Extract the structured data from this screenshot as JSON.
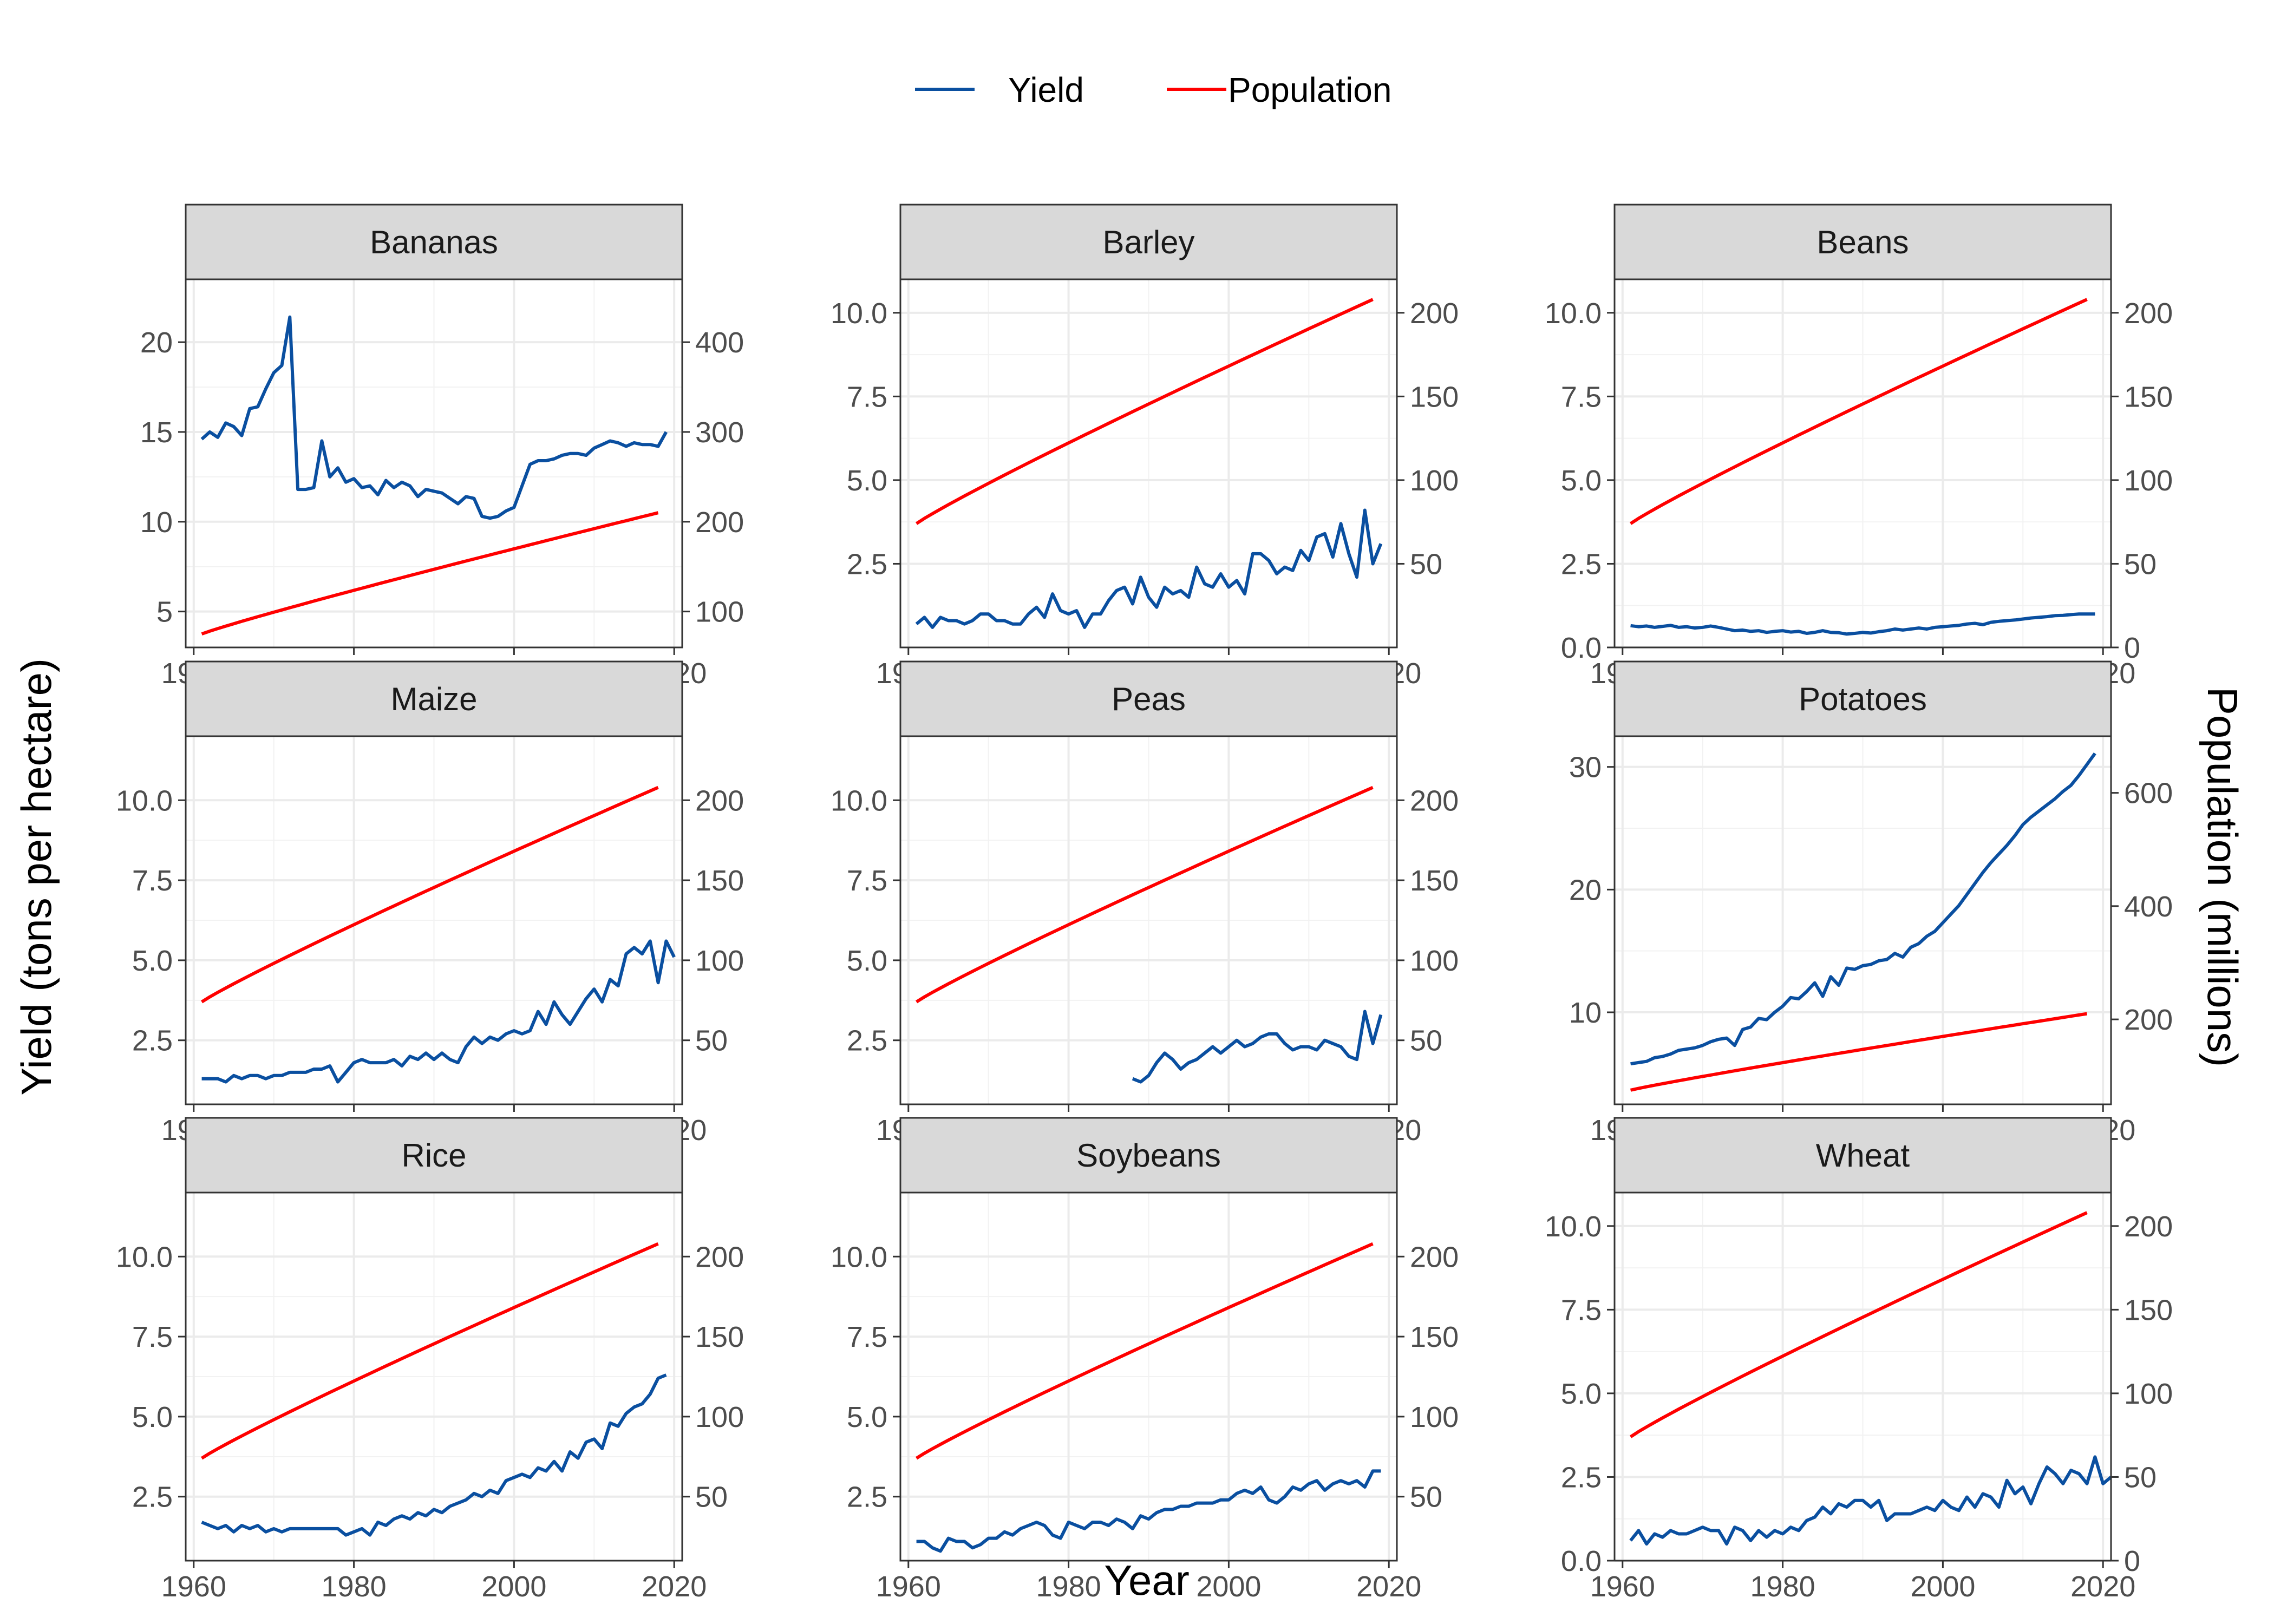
{
  "chart_data": {
    "type": "line",
    "legend": {
      "position": "top",
      "entries": [
        {
          "name": "Yield",
          "color": "#0a4fa0"
        },
        {
          "name": "Population",
          "color": "#ff0000"
        }
      ]
    },
    "xlabel": "Year",
    "ylabel": "Yield (tons per hectare)",
    "ylabel_right": "Population (millions)",
    "x_ticks": [
      1960,
      1980,
      2000,
      2020
    ],
    "xlim": [
      1959,
      2021
    ],
    "grid": true,
    "panels": [
      {
        "title": "Bananas",
        "ylim": [
          3,
          23.5
        ],
        "y_ticks": [
          5,
          10,
          15,
          20
        ],
        "y2lim": [
          60,
          470
        ],
        "y2_ticks": [
          100,
          200,
          300,
          400
        ],
        "yield": {
          "start_year": 1961,
          "values": [
            14.6,
            15.0,
            14.7,
            15.5,
            15.3,
            14.8,
            16.3,
            16.4,
            17.4,
            18.3,
            18.7,
            21.4,
            11.8,
            11.8,
            11.9,
            14.5,
            12.5,
            13.0,
            12.2,
            12.4,
            11.9,
            12.0,
            11.5,
            12.3,
            11.9,
            12.2,
            12.0,
            11.4,
            11.8,
            11.7,
            11.6,
            11.3,
            11.0,
            11.4,
            11.3,
            10.3,
            10.2,
            10.3,
            10.6,
            10.8,
            12.0,
            13.2,
            13.4,
            13.4,
            13.5,
            13.7,
            13.8,
            13.8,
            13.7,
            14.1,
            14.3,
            14.5,
            14.4,
            14.2,
            14.4,
            14.3,
            14.3,
            14.2,
            15.0
          ]
        },
        "population": {
          "start_year": 1961,
          "start_value": 75,
          "end_value": 210
        }
      },
      {
        "title": "Barley",
        "ylim": [
          0,
          11
        ],
        "y_ticks": [
          2.5,
          5.0,
          7.5,
          10.0
        ],
        "y_tick_labels": [
          "2.5",
          "5.0",
          "7.5",
          "10.0"
        ],
        "y2lim": [
          0,
          220
        ],
        "y2_ticks": [
          50,
          100,
          150,
          200
        ],
        "yield": {
          "start_year": 1961,
          "values": [
            0.7,
            0.9,
            0.6,
            0.9,
            0.8,
            0.8,
            0.7,
            0.8,
            1.0,
            1.0,
            0.8,
            0.8,
            0.7,
            0.7,
            1.0,
            1.2,
            0.9,
            1.6,
            1.1,
            1.0,
            1.1,
            0.6,
            1.0,
            1.0,
            1.4,
            1.7,
            1.8,
            1.3,
            2.1,
            1.5,
            1.2,
            1.8,
            1.6,
            1.7,
            1.5,
            2.4,
            1.9,
            1.8,
            2.2,
            1.8,
            2.0,
            1.6,
            2.8,
            2.8,
            2.6,
            2.2,
            2.4,
            2.3,
            2.9,
            2.6,
            3.3,
            3.4,
            2.7,
            3.7,
            2.8,
            2.1,
            4.1,
            2.5,
            3.1
          ]
        },
        "population": {
          "start_year": 1961,
          "start_value": 74,
          "end_value": 208
        }
      },
      {
        "title": "Beans",
        "ylim": [
          0,
          11
        ],
        "y_ticks": [
          0.0,
          2.5,
          5.0,
          7.5,
          10.0
        ],
        "y_tick_labels": [
          "0.0",
          "2.5",
          "5.0",
          "7.5",
          "10.0"
        ],
        "y2lim": [
          0,
          220
        ],
        "y2_ticks": [
          0,
          50,
          100,
          150,
          200
        ],
        "yield": {
          "start_year": 1961,
          "values": [
            0.65,
            0.62,
            0.64,
            0.6,
            0.63,
            0.66,
            0.6,
            0.62,
            0.58,
            0.6,
            0.64,
            0.6,
            0.55,
            0.5,
            0.52,
            0.48,
            0.5,
            0.45,
            0.48,
            0.5,
            0.46,
            0.48,
            0.42,
            0.45,
            0.5,
            0.45,
            0.44,
            0.4,
            0.42,
            0.45,
            0.43,
            0.47,
            0.5,
            0.55,
            0.52,
            0.55,
            0.58,
            0.55,
            0.6,
            0.62,
            0.64,
            0.66,
            0.7,
            0.72,
            0.68,
            0.75,
            0.78,
            0.8,
            0.82,
            0.85,
            0.88,
            0.9,
            0.92,
            0.95,
            0.96,
            0.98,
            1.0,
            1.0,
            1.0
          ]
        },
        "population": {
          "start_year": 1961,
          "start_value": 74,
          "end_value": 208
        }
      },
      {
        "title": "Maize",
        "ylim": [
          0.5,
          12
        ],
        "y_ticks": [
          2.5,
          5.0,
          7.5,
          10.0
        ],
        "y_tick_labels": [
          "2.5",
          "5.0",
          "7.5",
          "10.0"
        ],
        "y2lim": [
          10,
          240
        ],
        "y2_ticks": [
          50,
          100,
          150,
          200
        ],
        "yield": {
          "start_year": 1961,
          "values": [
            1.3,
            1.3,
            1.3,
            1.2,
            1.4,
            1.3,
            1.4,
            1.4,
            1.3,
            1.4,
            1.4,
            1.5,
            1.5,
            1.5,
            1.6,
            1.6,
            1.7,
            1.2,
            1.5,
            1.8,
            1.9,
            1.8,
            1.8,
            1.8,
            1.9,
            1.7,
            2.0,
            1.9,
            2.1,
            1.9,
            2.1,
            1.9,
            1.8,
            2.3,
            2.6,
            2.4,
            2.6,
            2.5,
            2.7,
            2.8,
            2.7,
            2.8,
            3.4,
            3.0,
            3.7,
            3.3,
            3.0,
            3.4,
            3.8,
            4.1,
            3.7,
            4.4,
            4.2,
            5.2,
            5.4,
            5.2,
            5.6,
            4.3,
            5.6,
            5.1
          ]
        },
        "population": {
          "start_year": 1961,
          "start_value": 74,
          "end_value": 208
        }
      },
      {
        "title": "Peas",
        "ylim": [
          0.5,
          12
        ],
        "y_ticks": [
          2.5,
          5.0,
          7.5,
          10.0
        ],
        "y_tick_labels": [
          "2.5",
          "5.0",
          "7.5",
          "10.0"
        ],
        "y2lim": [
          10,
          240
        ],
        "y2_ticks": [
          50,
          100,
          150,
          200
        ],
        "yield": {
          "start_year": 1988,
          "values": [
            1.3,
            1.2,
            1.4,
            1.8,
            2.1,
            1.9,
            1.6,
            1.8,
            1.9,
            2.1,
            2.3,
            2.1,
            2.3,
            2.5,
            2.3,
            2.4,
            2.6,
            2.7,
            2.7,
            2.4,
            2.2,
            2.3,
            2.3,
            2.2,
            2.5,
            2.4,
            2.3,
            2.0,
            1.9,
            3.4,
            2.4,
            3.3
          ]
        },
        "population": {
          "start_year": 1961,
          "start_value": 74,
          "end_value": 208
        }
      },
      {
        "title": "Potatoes",
        "ylim": [
          2.5,
          32.5
        ],
        "y_ticks": [
          10,
          20,
          30
        ],
        "y2lim": [
          50,
          700
        ],
        "y2_ticks": [
          200,
          400,
          600
        ],
        "yield": {
          "start_year": 1961,
          "values": [
            5.8,
            5.9,
            6.0,
            6.3,
            6.4,
            6.6,
            6.9,
            7.0,
            7.1,
            7.3,
            7.6,
            7.8,
            7.9,
            7.3,
            8.6,
            8.8,
            9.5,
            9.4,
            10.0,
            10.5,
            11.2,
            11.1,
            11.7,
            12.4,
            11.3,
            12.9,
            12.2,
            13.6,
            13.5,
            13.8,
            13.9,
            14.2,
            14.3,
            14.8,
            14.5,
            15.3,
            15.6,
            16.2,
            16.6,
            17.3,
            18.0,
            18.7,
            19.6,
            20.5,
            21.4,
            22.2,
            22.9,
            23.6,
            24.4,
            25.3,
            25.9,
            26.4,
            26.9,
            27.4,
            28.0,
            28.5,
            29.3,
            30.2,
            31.1
          ]
        },
        "population": {
          "start_year": 1961,
          "start_value": 75,
          "end_value": 210
        }
      },
      {
        "title": "Rice",
        "ylim": [
          0.5,
          12
        ],
        "y_ticks": [
          2.5,
          5.0,
          7.5,
          10.0
        ],
        "y_tick_labels": [
          "2.5",
          "5.0",
          "7.5",
          "10.0"
        ],
        "y2lim": [
          10,
          240
        ],
        "y2_ticks": [
          50,
          100,
          150,
          200
        ],
        "yield": {
          "start_year": 1961,
          "values": [
            1.7,
            1.6,
            1.5,
            1.6,
            1.4,
            1.6,
            1.5,
            1.6,
            1.4,
            1.5,
            1.4,
            1.5,
            1.5,
            1.5,
            1.5,
            1.5,
            1.5,
            1.5,
            1.3,
            1.4,
            1.5,
            1.3,
            1.7,
            1.6,
            1.8,
            1.9,
            1.8,
            2.0,
            1.9,
            2.1,
            2.0,
            2.2,
            2.3,
            2.4,
            2.6,
            2.5,
            2.7,
            2.6,
            3.0,
            3.1,
            3.2,
            3.1,
            3.4,
            3.3,
            3.6,
            3.3,
            3.9,
            3.7,
            4.2,
            4.3,
            4.0,
            4.8,
            4.7,
            5.1,
            5.3,
            5.4,
            5.7,
            6.2,
            6.3
          ]
        },
        "population": {
          "start_year": 1961,
          "start_value": 74,
          "end_value": 208
        }
      },
      {
        "title": "Soybeans",
        "ylim": [
          0.5,
          12
        ],
        "y_ticks": [
          2.5,
          5.0,
          7.5,
          10.0
        ],
        "y_tick_labels": [
          "2.5",
          "5.0",
          "7.5",
          "10.0"
        ],
        "y2lim": [
          10,
          240
        ],
        "y2_ticks": [
          50,
          100,
          150,
          200
        ],
        "yield": {
          "start_year": 1961,
          "values": [
            1.1,
            1.1,
            0.9,
            0.8,
            1.2,
            1.1,
            1.1,
            0.9,
            1.0,
            1.2,
            1.2,
            1.4,
            1.3,
            1.5,
            1.6,
            1.7,
            1.6,
            1.3,
            1.2,
            1.7,
            1.6,
            1.5,
            1.7,
            1.7,
            1.6,
            1.8,
            1.7,
            1.5,
            1.9,
            1.8,
            2.0,
            2.1,
            2.1,
            2.2,
            2.2,
            2.3,
            2.3,
            2.3,
            2.4,
            2.4,
            2.6,
            2.7,
            2.6,
            2.8,
            2.4,
            2.3,
            2.5,
            2.8,
            2.7,
            2.9,
            3.0,
            2.7,
            2.9,
            3.0,
            2.9,
            3.0,
            2.8,
            3.3,
            3.3
          ]
        },
        "population": {
          "start_year": 1961,
          "start_value": 74,
          "end_value": 208
        }
      },
      {
        "title": "Wheat",
        "ylim": [
          0,
          11
        ],
        "y_ticks": [
          0.0,
          2.5,
          5.0,
          7.5,
          10.0
        ],
        "y_tick_labels": [
          "0.0",
          "2.5",
          "5.0",
          "7.5",
          "10.0"
        ],
        "y2lim": [
          0,
          220
        ],
        "y2_ticks": [
          0,
          50,
          100,
          150,
          200
        ],
        "yield": {
          "start_year": 1961,
          "values": [
            0.6,
            0.9,
            0.5,
            0.8,
            0.7,
            0.9,
            0.8,
            0.8,
            0.9,
            1.0,
            0.9,
            0.9,
            0.5,
            1.0,
            0.9,
            0.6,
            0.9,
            0.7,
            0.9,
            0.8,
            1.0,
            0.9,
            1.2,
            1.3,
            1.6,
            1.4,
            1.7,
            1.6,
            1.8,
            1.8,
            1.6,
            1.8,
            1.2,
            1.4,
            1.4,
            1.4,
            1.5,
            1.6,
            1.5,
            1.8,
            1.6,
            1.5,
            1.9,
            1.6,
            2.0,
            1.9,
            1.6,
            2.4,
            2.0,
            2.2,
            1.7,
            2.3,
            2.8,
            2.6,
            2.3,
            2.7,
            2.6,
            2.3,
            3.1,
            2.3,
            2.5
          ]
        },
        "population": {
          "start_year": 1961,
          "start_value": 74,
          "end_value": 208
        }
      }
    ]
  }
}
